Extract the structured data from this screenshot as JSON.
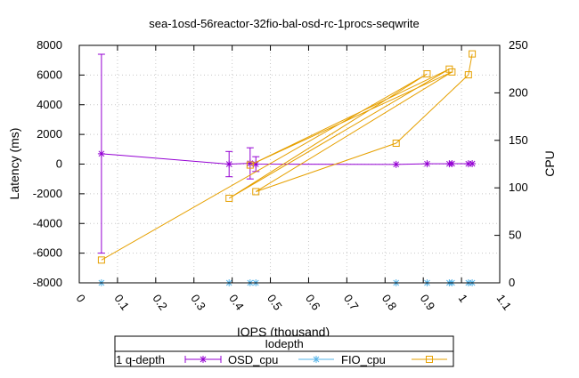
{
  "chart_data": {
    "type": "line",
    "title": "sea-1osd-56reactor-32fio-bal-osd-rc-1procs-seqwrite",
    "xlabel": "IOPS (thousand)",
    "ylabel": "Latency (ms)",
    "y2label": "CPU",
    "xlim": [
      0,
      1.1
    ],
    "ylim": [
      -8000,
      8000
    ],
    "y2lim": [
      0,
      250
    ],
    "xticks": [
      "0",
      "0.1",
      "0.2",
      "0.3",
      "0.4",
      "0.5",
      "0.6",
      "0.7",
      "0.8",
      "0.9",
      "1",
      "1.1"
    ],
    "yticks": [
      "-8000",
      "-6000",
      "-4000",
      "-2000",
      "0",
      "2000",
      "4000",
      "6000",
      "8000"
    ],
    "y2ticks": [
      "0",
      "50",
      "100",
      "150",
      "200",
      "250"
    ],
    "grid": true,
    "legend": {
      "title": "Iodepth",
      "placement": "bottom-center",
      "entries": [
        "1 q-depth",
        "OSD_cpu",
        "FIO_cpu"
      ]
    },
    "series": [
      {
        "name": "1 q-depth",
        "axis": "y",
        "color": "#9400d3",
        "marker": "star",
        "points": [
          {
            "x": 0.058,
            "y": 700,
            "err": 6700
          },
          {
            "x": 0.392,
            "y": 0,
            "err": 850
          },
          {
            "x": 0.447,
            "y": 50,
            "err": 1050
          },
          {
            "x": 0.462,
            "y": 0,
            "err": 500
          },
          {
            "x": 0.829,
            "y": -20,
            "err": 0
          },
          {
            "x": 0.91,
            "y": 20,
            "err": 0
          },
          {
            "x": 0.968,
            "y": 20,
            "err": 0
          },
          {
            "x": 0.975,
            "y": 30,
            "err": 0
          },
          {
            "x": 1.018,
            "y": 20,
            "err": 0
          },
          {
            "x": 1.028,
            "y": 30,
            "err": 0
          }
        ]
      },
      {
        "name": "OSD_cpu",
        "axis": "y2",
        "color": "#56b4e9",
        "marker": "star",
        "points": [
          {
            "x": 0.058,
            "y": 0
          },
          {
            "x": 0.392,
            "y": 0
          },
          {
            "x": 0.447,
            "y": 0
          },
          {
            "x": 0.462,
            "y": 0
          },
          {
            "x": 0.829,
            "y": 0
          },
          {
            "x": 0.91,
            "y": 0
          },
          {
            "x": 0.968,
            "y": 0
          },
          {
            "x": 0.975,
            "y": 0
          },
          {
            "x": 1.018,
            "y": 0
          },
          {
            "x": 1.028,
            "y": 0
          }
        ]
      },
      {
        "name": "FIO_cpu",
        "axis": "y2",
        "color": "#e6a000",
        "marker": "square",
        "points": [
          {
            "x": 0.058,
            "y": 24
          },
          {
            "x": 0.91,
            "y": 220
          },
          {
            "x": 0.392,
            "y": 89
          },
          {
            "x": 0.968,
            "y": 225
          },
          {
            "x": 0.447,
            "y": 124
          },
          {
            "x": 0.975,
            "y": 222
          },
          {
            "x": 0.462,
            "y": 96
          },
          {
            "x": 0.829,
            "y": 147
          },
          {
            "x": 1.018,
            "y": 219
          },
          {
            "x": 1.028,
            "y": 241
          }
        ]
      }
    ]
  }
}
